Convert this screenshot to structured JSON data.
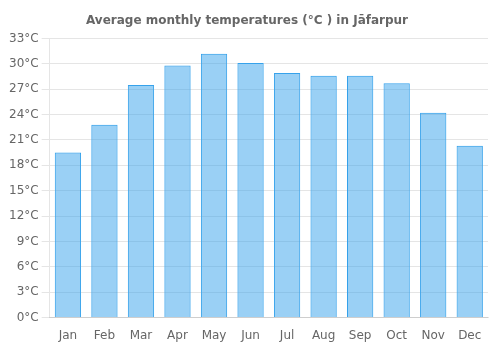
{
  "chart_data": {
    "type": "bar",
    "title": "Average monthly temperatures (°C ) in Jāfarpur",
    "categories": [
      "Jan",
      "Feb",
      "Mar",
      "Apr",
      "May",
      "Jun",
      "Jul",
      "Aug",
      "Sep",
      "Oct",
      "Nov",
      "Dec"
    ],
    "values": [
      19.5,
      22.8,
      27.5,
      29.8,
      31.2,
      30.1,
      28.9,
      28.6,
      28.6,
      27.7,
      24.2,
      20.3
    ],
    "ylim": [
      0,
      33
    ],
    "yticks": [
      {
        "value": 0,
        "label": "0°C"
      },
      {
        "value": 3,
        "label": "3°C"
      },
      {
        "value": 6,
        "label": "6°C"
      },
      {
        "value": 9,
        "label": "9°C"
      },
      {
        "value": 12,
        "label": "12°C"
      },
      {
        "value": 15,
        "label": "15°C"
      },
      {
        "value": 18,
        "label": "18°C"
      },
      {
        "value": 21,
        "label": "21°C"
      },
      {
        "value": 24,
        "label": "24°C"
      },
      {
        "value": 27,
        "label": "27°C"
      },
      {
        "value": 30,
        "label": "30°C"
      },
      {
        "value": 33,
        "label": "33°C"
      }
    ],
    "grid": true
  }
}
